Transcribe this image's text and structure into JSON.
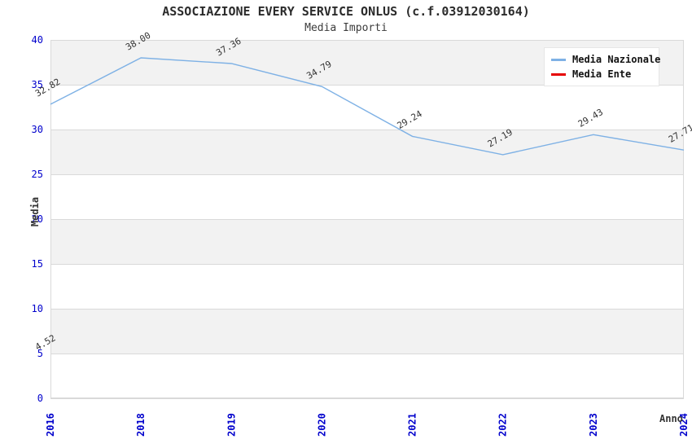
{
  "colors": {
    "band_gray": "#f2f2f2",
    "gridline": "#d9d9d9",
    "tick_blue": "#0000cc",
    "nazionale_line": "#7eb1e5",
    "ente_line": "#e60000",
    "data_label": "#333333",
    "legend_bg": "#ffffff"
  },
  "chart_data": {
    "type": "line",
    "title": "ASSOCIAZIONE EVERY SERVICE ONLUS (c.f.03912030164)",
    "subtitle": "Media Importi",
    "xlabel": "Anno",
    "ylabel": "Media",
    "categories": [
      "2016",
      "2018",
      "2019",
      "2020",
      "2021",
      "2022",
      "2023",
      "2024"
    ],
    "series": [
      {
        "name": "Media Nazionale",
        "color": "#7eb1e5",
        "values": [
          32.82,
          38.0,
          37.36,
          34.79,
          29.24,
          27.19,
          29.43,
          27.71
        ]
      },
      {
        "name": "Media Ente",
        "color": "#e60000",
        "values": [
          4.52,
          null,
          null,
          null,
          null,
          null,
          null,
          null
        ]
      }
    ],
    "ylim": [
      0,
      40
    ],
    "yticks": [
      0,
      5,
      10,
      15,
      20,
      25,
      30,
      35,
      40
    ],
    "legend_position": "top-right",
    "grid": "horizontal-bands-alternating",
    "data_labels_shown": true,
    "x_tick_rotation_deg": 90,
    "data_label_rotation_deg": 30
  }
}
